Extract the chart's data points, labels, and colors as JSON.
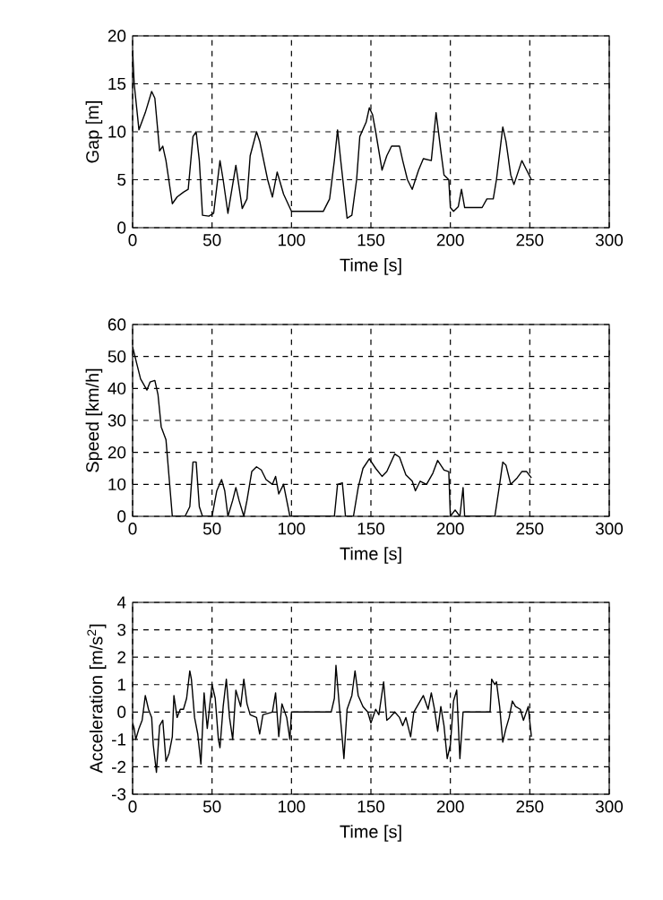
{
  "chart_data": [
    {
      "type": "line",
      "xlabel": "Time [s]",
      "ylabel": "Gap [m]",
      "color": "#000000",
      "grid": true,
      "xlim": [
        0,
        300
      ],
      "ylim": [
        0,
        20
      ],
      "xticks": [
        0,
        50,
        100,
        150,
        200,
        250,
        300
      ],
      "yticks": [
        0,
        5,
        10,
        15,
        20
      ],
      "x": [
        0,
        1,
        4,
        8,
        12,
        14,
        17,
        19,
        21,
        25,
        28,
        32,
        35,
        38,
        40,
        42,
        44,
        48,
        51,
        55,
        57,
        60,
        65,
        69,
        72,
        74,
        78,
        80,
        85,
        88,
        91,
        95,
        100,
        120,
        124,
        127,
        129,
        131,
        135,
        138,
        141,
        143,
        147,
        149,
        151,
        153,
        157,
        160,
        163,
        168,
        170,
        173,
        176,
        180,
        183,
        188,
        191,
        194,
        196,
        199,
        200,
        202,
        205,
        207,
        209,
        220,
        223,
        227,
        229,
        233,
        235,
        238,
        240,
        245,
        248,
        251
      ],
      "values": [
        18.5,
        15,
        10.2,
        12,
        14.2,
        13.5,
        8,
        8.5,
        7,
        2.5,
        3.2,
        3.7,
        4,
        9.5,
        10,
        7,
        1.3,
        1.2,
        1.5,
        7,
        5,
        1.5,
        6.5,
        2,
        3,
        7.5,
        10,
        9,
        5,
        3.2,
        5.8,
        3.5,
        1.7,
        1.7,
        3,
        7,
        10.2,
        7,
        1,
        1.3,
        5,
        9.5,
        11,
        12.5,
        11.8,
        10,
        6,
        7.5,
        8.5,
        8.5,
        7,
        5,
        4,
        6,
        7.2,
        7,
        12,
        8,
        5.5,
        5,
        2.1,
        1.7,
        2.2,
        4,
        2.1,
        2.1,
        3,
        3,
        5,
        10.5,
        9,
        5.5,
        4.5,
        7,
        6,
        5
      ]
    },
    {
      "type": "line",
      "xlabel": "Time [s]",
      "ylabel": "Speed [km/h]",
      "color": "#000000",
      "grid": true,
      "xlim": [
        0,
        300
      ],
      "ylim": [
        0,
        60
      ],
      "xticks": [
        0,
        50,
        100,
        150,
        200,
        250,
        300
      ],
      "yticks": [
        0,
        10,
        20,
        30,
        40,
        50,
        60
      ],
      "x": [
        0,
        3,
        5,
        9,
        11,
        14,
        16,
        18,
        21,
        25,
        33,
        36,
        38,
        40,
        42,
        44,
        50,
        53,
        56,
        58,
        60,
        63,
        65,
        67,
        70,
        72,
        75,
        78,
        81,
        84,
        88,
        90,
        92,
        95,
        97,
        99,
        127,
        129,
        132,
        134,
        139,
        142,
        145,
        149,
        153,
        157,
        160,
        165,
        168,
        172,
        176,
        178,
        181,
        185,
        189,
        192,
        196,
        199,
        200,
        203,
        206,
        208,
        209,
        228,
        231,
        233,
        235,
        238,
        242,
        245,
        248,
        251
      ],
      "values": [
        53,
        47,
        43,
        39.5,
        42,
        42.5,
        38,
        28,
        24,
        0,
        0,
        3,
        17,
        17,
        3,
        0,
        0,
        8,
        11.5,
        8,
        0,
        5,
        9,
        5,
        0,
        5,
        14,
        15.5,
        14.5,
        11.5,
        10,
        12.5,
        7,
        10,
        5,
        0,
        0,
        10,
        10.5,
        0,
        0,
        9,
        15,
        18,
        15,
        12.5,
        14,
        19.5,
        18.5,
        13,
        11,
        8,
        11,
        10,
        13.5,
        17.5,
        14.5,
        14,
        0,
        2,
        0,
        9,
        0,
        0,
        10,
        17,
        16,
        10,
        12,
        14,
        14,
        12
      ]
    },
    {
      "type": "line",
      "xlabel": "Time [s]",
      "ylabel": "Acceleration [m/s$^{2}$]",
      "color": "#000000",
      "grid": true,
      "xlim": [
        0,
        300
      ],
      "ylim": [
        -3,
        4
      ],
      "xticks": [
        0,
        50,
        100,
        150,
        200,
        250,
        300
      ],
      "yticks": [
        -3,
        -2,
        -1,
        0,
        1,
        2,
        3,
        4
      ],
      "x": [
        0,
        1,
        2,
        4,
        6,
        8,
        10,
        12,
        13,
        15,
        17,
        19,
        21,
        23,
        25,
        26,
        28,
        30,
        32,
        34,
        36,
        37,
        39,
        41,
        43,
        45,
        47,
        50,
        52,
        54,
        55,
        57,
        59,
        61,
        63,
        65,
        68,
        70,
        72,
        74,
        78,
        80,
        82,
        88,
        90,
        92,
        94,
        97,
        99,
        100,
        125,
        127,
        128,
        130,
        132,
        133,
        135,
        138,
        140,
        142,
        145,
        148,
        150,
        153,
        155,
        158,
        160,
        162,
        165,
        168,
        170,
        172,
        175,
        177,
        180,
        183,
        186,
        188,
        190,
        192,
        194,
        196,
        198,
        200,
        202,
        204,
        206,
        208,
        225,
        226,
        228,
        229,
        231,
        233,
        235,
        237,
        239,
        241,
        244,
        246,
        249,
        251
      ],
      "values": [
        -0.4,
        -0.6,
        -1.0,
        -0.6,
        -0.3,
        0.6,
        0.1,
        -0.2,
        -1.2,
        -2.2,
        -0.5,
        -0.3,
        -1.8,
        -1.5,
        -0.9,
        0.6,
        -0.2,
        0.1,
        0.1,
        0.5,
        1.5,
        1.2,
        -0.2,
        -0.8,
        -1.9,
        0.7,
        -0.6,
        1.0,
        0.5,
        -1.0,
        -1.3,
        0.2,
        1.2,
        -0.2,
        -1.0,
        0.8,
        0.2,
        1.2,
        0.3,
        -0.1,
        -0.2,
        -0.8,
        -0.1,
        0.0,
        0.7,
        -0.9,
        0.3,
        -0.2,
        -1.0,
        0,
        0,
        0.5,
        1.7,
        0.3,
        -1.0,
        -1.7,
        0.1,
        0.6,
        1.5,
        0.6,
        0.2,
        0,
        -0.4,
        0.1,
        -0.1,
        1.1,
        -0.3,
        -0.2,
        0,
        -0.2,
        -0.5,
        -0.2,
        -0.9,
        0,
        0.3,
        0.6,
        0.1,
        0.7,
        0.1,
        -0.7,
        0.2,
        -0.5,
        -1.7,
        -1.2,
        0.4,
        0.8,
        -1.7,
        0,
        0,
        1.2,
        1.0,
        1.1,
        0.2,
        -1.1,
        -0.6,
        -0.2,
        0.4,
        0.2,
        0.1,
        -0.3,
        0.2,
        -0.9
      ]
    }
  ]
}
